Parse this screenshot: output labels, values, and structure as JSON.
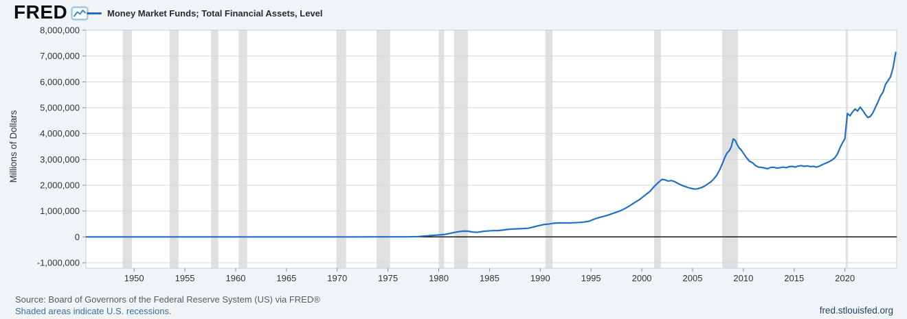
{
  "brand": {
    "logo_text": "FRED",
    "logo_icon": "line-chart-icon"
  },
  "legend": {
    "series_label": "Money Market Funds; Total Financial Assets, Level"
  },
  "footer": {
    "source": "Source: Board of Governors of the Federal Reserve System (US) via FRED®",
    "recessions_note": "Shaded areas indicate U.S. recessions.",
    "site_link": "fred.stlouisfed.org"
  },
  "chart_data": {
    "type": "line",
    "title": "Money Market Funds; Total Financial Assets, Level",
    "ylabel": "Millions of Dollars",
    "xlabel": "",
    "xlim": [
      1945.25,
      2025.1
    ],
    "ylim": [
      -1000000,
      8000000
    ],
    "x_ticks": [
      1950,
      1955,
      1960,
      1965,
      1970,
      1975,
      1980,
      1985,
      1990,
      1995,
      2000,
      2005,
      2010,
      2015,
      2020
    ],
    "y_ticks": [
      -1000000,
      0,
      1000000,
      2000000,
      3000000,
      4000000,
      5000000,
      6000000,
      7000000,
      8000000
    ],
    "grid": "horizontal",
    "legend_position": "top-left",
    "line_color": "#1f6fc4",
    "recession_band_color": "#e0e0e0",
    "recessions": [
      [
        1948.87,
        1949.79
      ],
      [
        1953.5,
        1954.37
      ],
      [
        1957.58,
        1958.29
      ],
      [
        1960.29,
        1961.12
      ],
      [
        1969.92,
        1970.87
      ],
      [
        1973.87,
        1975.21
      ],
      [
        1980.0,
        1980.54
      ],
      [
        1981.5,
        1982.87
      ],
      [
        1990.5,
        1991.21
      ],
      [
        2001.21,
        2001.87
      ],
      [
        2007.92,
        2009.46
      ],
      [
        2020.08,
        2020.29
      ]
    ],
    "series": [
      {
        "name": "Money Market Funds; Total Financial Assets, Level",
        "points": [
          [
            1945.4,
            0
          ],
          [
            1948,
            0
          ],
          [
            1950,
            0
          ],
          [
            1952,
            0
          ],
          [
            1954,
            0
          ],
          [
            1956,
            0
          ],
          [
            1958,
            0
          ],
          [
            1960,
            0
          ],
          [
            1962,
            0
          ],
          [
            1964,
            0
          ],
          [
            1966,
            0
          ],
          [
            1968,
            0
          ],
          [
            1970,
            0
          ],
          [
            1972,
            500
          ],
          [
            1974,
            2400
          ],
          [
            1975,
            3700
          ],
          [
            1976,
            3400
          ],
          [
            1977,
            3900
          ],
          [
            1978,
            10800
          ],
          [
            1979,
            45200
          ],
          [
            1980,
            76400
          ],
          [
            1980.5,
            92000
          ],
          [
            1981,
            125000
          ],
          [
            1981.5,
            170000
          ],
          [
            1982,
            206000
          ],
          [
            1982.5,
            225000
          ],
          [
            1982.9,
            220000
          ],
          [
            1983.3,
            190000
          ],
          [
            1983.8,
            180000
          ],
          [
            1984.3,
            210000
          ],
          [
            1984.8,
            230000
          ],
          [
            1985.3,
            242000
          ],
          [
            1985.8,
            245000
          ],
          [
            1986.3,
            265000
          ],
          [
            1986.8,
            290000
          ],
          [
            1987.3,
            305000
          ],
          [
            1987.8,
            315000
          ],
          [
            1988.3,
            322000
          ],
          [
            1988.8,
            335000
          ],
          [
            1989.3,
            380000
          ],
          [
            1989.8,
            430000
          ],
          [
            1990.3,
            475000
          ],
          [
            1990.8,
            495000
          ],
          [
            1991.3,
            528000
          ],
          [
            1991.8,
            540000
          ],
          [
            1992.3,
            545000
          ],
          [
            1992.8,
            540000
          ],
          [
            1993.3,
            548000
          ],
          [
            1993.8,
            558000
          ],
          [
            1994.3,
            575000
          ],
          [
            1994.8,
            605000
          ],
          [
            1995.3,
            685000
          ],
          [
            1995.8,
            750000
          ],
          [
            1996.3,
            800000
          ],
          [
            1996.8,
            860000
          ],
          [
            1997.3,
            930000
          ],
          [
            1997.8,
            1000000
          ],
          [
            1998.3,
            1090000
          ],
          [
            1998.8,
            1200000
          ],
          [
            1999.3,
            1330000
          ],
          [
            1999.8,
            1450000
          ],
          [
            2000.3,
            1610000
          ],
          [
            2000.8,
            1760000
          ],
          [
            2001.1,
            1900000
          ],
          [
            2001.4,
            2020000
          ],
          [
            2001.7,
            2130000
          ],
          [
            2002,
            2230000
          ],
          [
            2002.3,
            2205000
          ],
          [
            2002.6,
            2160000
          ],
          [
            2002.9,
            2180000
          ],
          [
            2003.2,
            2145000
          ],
          [
            2003.5,
            2080000
          ],
          [
            2003.8,
            2020000
          ],
          [
            2004.1,
            1970000
          ],
          [
            2004.4,
            1930000
          ],
          [
            2004.7,
            1895000
          ],
          [
            2005,
            1865000
          ],
          [
            2005.3,
            1850000
          ],
          [
            2005.6,
            1875000
          ],
          [
            2005.9,
            1915000
          ],
          [
            2006.2,
            1970000
          ],
          [
            2006.5,
            2050000
          ],
          [
            2006.8,
            2130000
          ],
          [
            2007.1,
            2250000
          ],
          [
            2007.4,
            2400000
          ],
          [
            2007.7,
            2620000
          ],
          [
            2008,
            2900000
          ],
          [
            2008.2,
            3100000
          ],
          [
            2008.4,
            3250000
          ],
          [
            2008.6,
            3330000
          ],
          [
            2008.8,
            3480000
          ],
          [
            2009,
            3790000
          ],
          [
            2009.2,
            3740000
          ],
          [
            2009.4,
            3560000
          ],
          [
            2009.6,
            3440000
          ],
          [
            2009.8,
            3360000
          ],
          [
            2010,
            3240000
          ],
          [
            2010.3,
            3070000
          ],
          [
            2010.6,
            2930000
          ],
          [
            2010.9,
            2870000
          ],
          [
            2011.2,
            2760000
          ],
          [
            2011.5,
            2700000
          ],
          [
            2011.8,
            2690000
          ],
          [
            2012.1,
            2665000
          ],
          [
            2012.4,
            2640000
          ],
          [
            2012.7,
            2690000
          ],
          [
            2013,
            2695000
          ],
          [
            2013.3,
            2660000
          ],
          [
            2013.6,
            2680000
          ],
          [
            2013.9,
            2700000
          ],
          [
            2014.2,
            2680000
          ],
          [
            2014.5,
            2720000
          ],
          [
            2014.8,
            2730000
          ],
          [
            2015.1,
            2700000
          ],
          [
            2015.4,
            2740000
          ],
          [
            2015.7,
            2760000
          ],
          [
            2016,
            2730000
          ],
          [
            2016.3,
            2750000
          ],
          [
            2016.6,
            2720000
          ],
          [
            2016.9,
            2730000
          ],
          [
            2017.2,
            2700000
          ],
          [
            2017.5,
            2740000
          ],
          [
            2017.8,
            2800000
          ],
          [
            2018.1,
            2850000
          ],
          [
            2018.4,
            2900000
          ],
          [
            2018.7,
            2970000
          ],
          [
            2019,
            3060000
          ],
          [
            2019.25,
            3200000
          ],
          [
            2019.5,
            3430000
          ],
          [
            2019.75,
            3630000
          ],
          [
            2020,
            3800000
          ],
          [
            2020.25,
            4780000
          ],
          [
            2020.5,
            4690000
          ],
          [
            2020.75,
            4830000
          ],
          [
            2021,
            4950000
          ],
          [
            2021.25,
            4870000
          ],
          [
            2021.5,
            5020000
          ],
          [
            2021.75,
            4900000
          ],
          [
            2022,
            4750000
          ],
          [
            2022.25,
            4620000
          ],
          [
            2022.5,
            4660000
          ],
          [
            2022.75,
            4800000
          ],
          [
            2023,
            5010000
          ],
          [
            2023.25,
            5220000
          ],
          [
            2023.5,
            5450000
          ],
          [
            2023.75,
            5600000
          ],
          [
            2024,
            5900000
          ],
          [
            2024.25,
            6050000
          ],
          [
            2024.5,
            6200000
          ],
          [
            2024.75,
            6550000
          ],
          [
            2025,
            7140000
          ]
        ]
      }
    ]
  }
}
